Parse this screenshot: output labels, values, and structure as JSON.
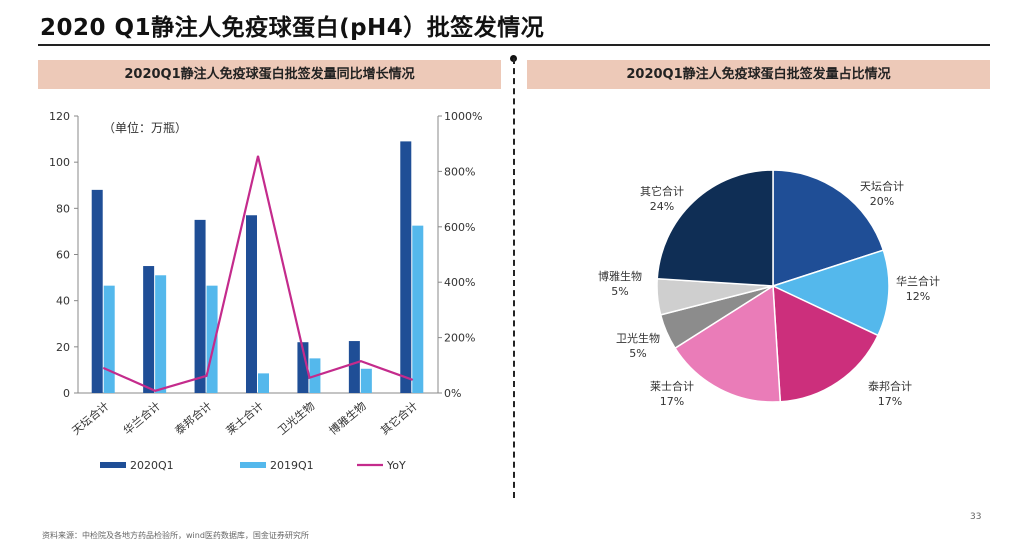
{
  "page": {
    "title": "2020 Q1静注人免疫球蛋白(pH4）批签发情况",
    "source": "资料来源：中检院及各地方药品检验所，wind医药数据库，国金证券研究所",
    "page_number": "33"
  },
  "chart_data": [
    {
      "type": "bar",
      "title": "2020Q1静注人免疫球蛋白批签发量同比增长情况",
      "unit_note": "（单位：万瓶）",
      "categories": [
        "天坛合计",
        "华兰合计",
        "泰邦合计",
        "莱士合计",
        "卫光生物",
        "博雅生物",
        "其它合计"
      ],
      "series": [
        {
          "name": "2020Q1",
          "type": "bar",
          "axis": "left",
          "color": "#1f4e96",
          "values": [
            88,
            55,
            75,
            77,
            22,
            22.5,
            109
          ]
        },
        {
          "name": "2019Q1",
          "type": "bar",
          "axis": "left",
          "color": "#54b8ec",
          "values": [
            46.5,
            51,
            46.5,
            8.5,
            15,
            10.5,
            72.5
          ]
        },
        {
          "name": "YoY",
          "type": "line",
          "axis": "right",
          "color": "#c42b8c",
          "values": [
            0.9,
            0.08,
            0.62,
            8.55,
            0.55,
            1.15,
            0.48
          ]
        }
      ],
      "y_left": {
        "min": 0,
        "max": 120,
        "ticks": [
          "0",
          "20",
          "40",
          "60",
          "80",
          "100",
          "120"
        ]
      },
      "y_right": {
        "min": 0,
        "max": 10,
        "ticks": [
          "0%",
          "200%",
          "400%",
          "600%",
          "800%",
          "1000%"
        ]
      },
      "legend": [
        "2020Q1",
        "2019Q1",
        "YoY"
      ],
      "grid": false
    },
    {
      "type": "pie",
      "title": "2020Q1静注人免疫球蛋白批签发量占比情况",
      "slices": [
        {
          "label": "天坛合计",
          "pct": "20%",
          "value": 20,
          "color": "#1f4e96"
        },
        {
          "label": "华兰合计",
          "pct": "12%",
          "value": 12,
          "color": "#54b8ec"
        },
        {
          "label": "泰邦合计",
          "pct": "17%",
          "value": 17,
          "color": "#cc2f7c"
        },
        {
          "label": "莱士合计",
          "pct": "17%",
          "value": 17,
          "color": "#ea7cb8"
        },
        {
          "label": "卫光生物",
          "pct": "5%",
          "value": 5,
          "color": "#8c8c8c"
        },
        {
          "label": "博雅生物",
          "pct": "5%",
          "value": 5,
          "color": "#cfcfcf"
        },
        {
          "label": "其它合计",
          "pct": "24%",
          "value": 24,
          "color": "#0f2e55"
        }
      ]
    }
  ]
}
